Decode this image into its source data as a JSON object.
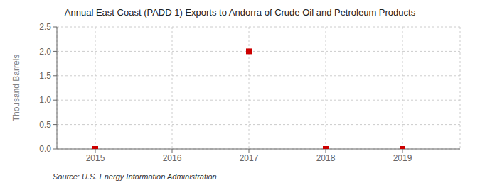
{
  "chart_data": {
    "type": "scatter",
    "title": "Annual East Coast (PADD 1) Exports to Andorra of Crude Oil and Petroleum Products",
    "ylabel": "Thousand Barrels",
    "annotation": "Source: U.S. Energy Information Administration",
    "x": [
      2015,
      2017,
      2018,
      2019
    ],
    "values": [
      0.0,
      2.0,
      0.0,
      0.0
    ],
    "color": "#cc0000",
    "marker": "square",
    "xlim": [
      2014.5,
      2019.75
    ],
    "xticks": [
      2015,
      2016,
      2017,
      2018,
      2019
    ],
    "ylim": [
      0,
      2.5
    ],
    "yticks": [
      {
        "value": 0.0,
        "label": "0.0"
      },
      0.5,
      {
        "value": 1.0,
        "label": "1.0"
      },
      1.5,
      {
        "value": 2.0,
        "label": "2.0"
      },
      2.5
    ],
    "grid": true
  }
}
